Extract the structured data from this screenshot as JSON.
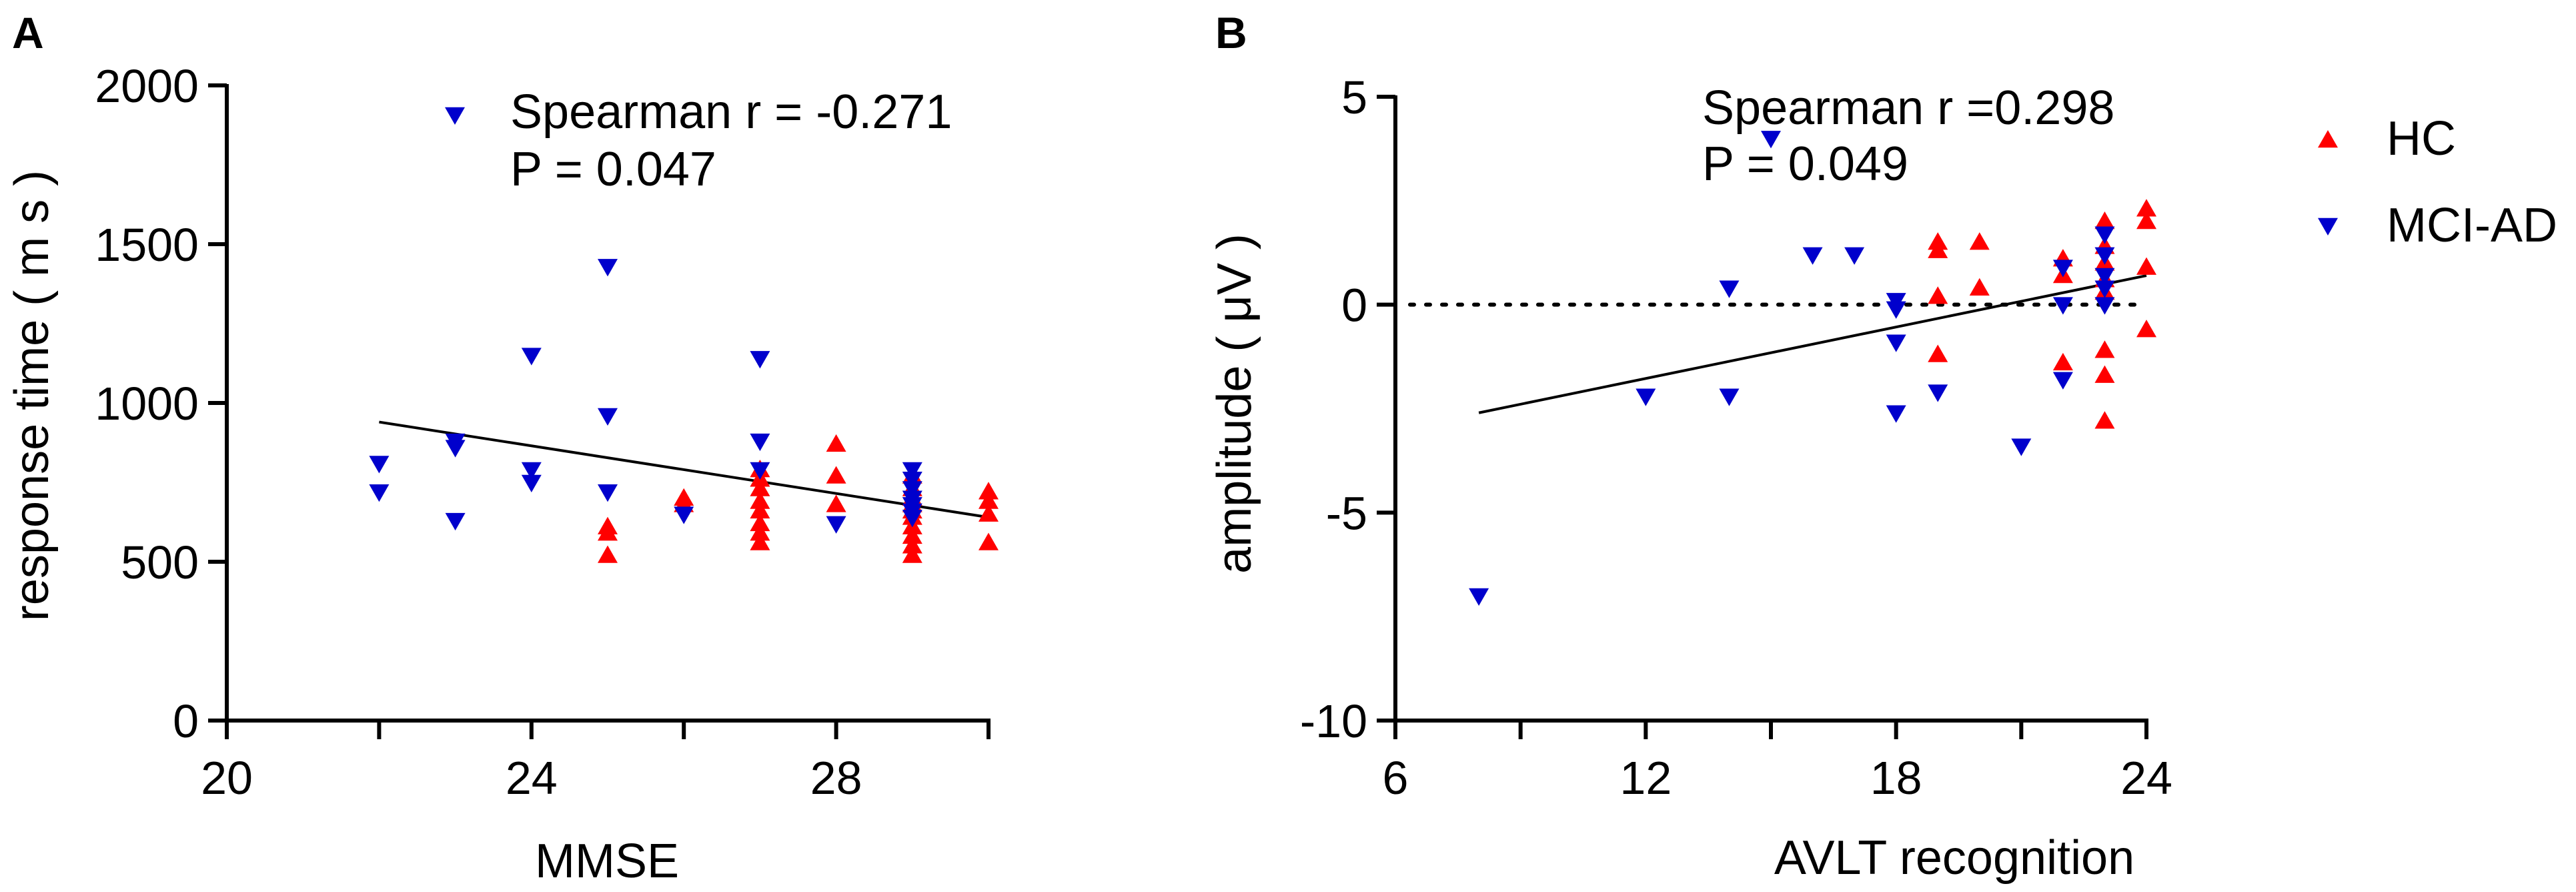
{
  "colors": {
    "hc": "#ff0000",
    "mci": "#0000cc",
    "axis": "#000000"
  },
  "legend": {
    "items": [
      {
        "label": "HC",
        "marker": "triangle-up",
        "color": "#ff0000"
      },
      {
        "label": "MCI-AD",
        "marker": "triangle-down",
        "color": "#0000cc"
      }
    ]
  },
  "chart_data": [
    {
      "panel_label": "A",
      "type": "scatter",
      "title": "",
      "xlabel": "MMSE",
      "ylabel": "response time ( m s )",
      "xlim": [
        20,
        30
      ],
      "ylim": [
        0,
        2000
      ],
      "x_ticks": [
        20,
        24,
        28
      ],
      "x_minor_ticks": [
        22,
        26,
        30
      ],
      "y_ticks": [
        0,
        500,
        1000,
        1500,
        2000
      ],
      "annotation": [
        "Spearman r = -0.271",
        "P = 0.047"
      ],
      "annotation_marker": {
        "marker": "triangle-down",
        "color": "#0000cc"
      },
      "series": [
        {
          "name": "HC",
          "marker": "triangle-up",
          "color": "#ff0000",
          "points": [
            [
              25,
              520
            ],
            [
              25,
              590
            ],
            [
              25,
              610
            ],
            [
              26,
              700
            ],
            [
              26,
              680
            ],
            [
              27,
              560
            ],
            [
              27,
              590
            ],
            [
              27,
              620
            ],
            [
              27,
              660
            ],
            [
              27,
              690
            ],
            [
              27,
              730
            ],
            [
              27,
              760
            ],
            [
              27,
              790
            ],
            [
              28,
              870
            ],
            [
              28,
              770
            ],
            [
              28,
              680
            ],
            [
              29,
              520
            ],
            [
              29,
              550
            ],
            [
              29,
              580
            ],
            [
              29,
              610
            ],
            [
              29,
              640
            ],
            [
              29,
              660
            ],
            [
              29,
              680
            ],
            [
              29,
              700
            ],
            [
              29,
              730
            ],
            [
              29,
              770
            ],
            [
              30,
              560
            ],
            [
              30,
              650
            ],
            [
              30,
              690
            ],
            [
              30,
              720
            ]
          ]
        },
        {
          "name": "MCI-AD",
          "marker": "triangle-down",
          "color": "#0000cc",
          "points": [
            [
              22,
              810
            ],
            [
              22,
              720
            ],
            [
              23,
              880
            ],
            [
              23,
              860
            ],
            [
              23,
              630
            ],
            [
              24,
              1150
            ],
            [
              24,
              790
            ],
            [
              24,
              750
            ],
            [
              25,
              1430
            ],
            [
              25,
              960
            ],
            [
              25,
              720
            ],
            [
              26,
              650
            ],
            [
              27,
              1140
            ],
            [
              27,
              880
            ],
            [
              27,
              790
            ],
            [
              28,
              620
            ],
            [
              29,
              790
            ],
            [
              29,
              760
            ],
            [
              29,
              730
            ],
            [
              29,
              700
            ],
            [
              29,
              680
            ],
            [
              29,
              660
            ],
            [
              29,
              640
            ]
          ]
        }
      ],
      "trend_line": {
        "x": [
          22,
          30
        ],
        "y": [
          940,
          640
        ]
      }
    },
    {
      "panel_label": "B",
      "type": "scatter",
      "title": "",
      "xlabel": "AVLT recognition",
      "ylabel": "amplitude ( μV )",
      "xlim": [
        6,
        24
      ],
      "ylim": [
        -10,
        5
      ],
      "x_ticks": [
        6,
        12,
        18,
        24
      ],
      "x_minor_ticks": [
        9,
        15,
        21
      ],
      "y_ticks": [
        -10,
        -5,
        0,
        5
      ],
      "reference_line_y": 0,
      "annotation": [
        "Spearman r =0.298",
        "P = 0.049"
      ],
      "series": [
        {
          "name": "HC",
          "marker": "triangle-up",
          "color": "#ff0000",
          "points": [
            [
              19,
              1.5
            ],
            [
              19,
              1.3
            ],
            [
              19,
              0.2
            ],
            [
              19,
              -1.2
            ],
            [
              20,
              1.5
            ],
            [
              20,
              0.4
            ],
            [
              22,
              1.1
            ],
            [
              22,
              0.7
            ],
            [
              22,
              -1.4
            ],
            [
              23,
              2.0
            ],
            [
              23,
              1.4
            ],
            [
              23,
              1.0
            ],
            [
              23,
              0.6
            ],
            [
              23,
              0.3
            ],
            [
              23,
              -1.1
            ],
            [
              23,
              -1.7
            ],
            [
              23,
              -2.8
            ],
            [
              24,
              2.3
            ],
            [
              24,
              2.0
            ],
            [
              24,
              0.9
            ],
            [
              24,
              -0.6
            ]
          ]
        },
        {
          "name": "MCI-AD",
          "marker": "triangle-down",
          "color": "#0000cc",
          "points": [
            [
              8,
              -7.0
            ],
            [
              12,
              -2.2
            ],
            [
              14,
              0.4
            ],
            [
              14,
              -2.2
            ],
            [
              15,
              4.0
            ],
            [
              16,
              1.2
            ],
            [
              17,
              1.2
            ],
            [
              18,
              0.1
            ],
            [
              18,
              -0.1
            ],
            [
              18,
              -0.9
            ],
            [
              18,
              -2.6
            ],
            [
              19,
              -2.1
            ],
            [
              21,
              -3.4
            ],
            [
              22,
              0.9
            ],
            [
              22,
              0.0
            ],
            [
              22,
              -1.8
            ],
            [
              23,
              1.7
            ],
            [
              23,
              1.2
            ],
            [
              23,
              0.7
            ],
            [
              23,
              0.4
            ],
            [
              23,
              0.0
            ]
          ]
        }
      ],
      "trend_line": {
        "x": [
          8,
          24
        ],
        "y": [
          -2.6,
          0.7
        ]
      }
    }
  ]
}
